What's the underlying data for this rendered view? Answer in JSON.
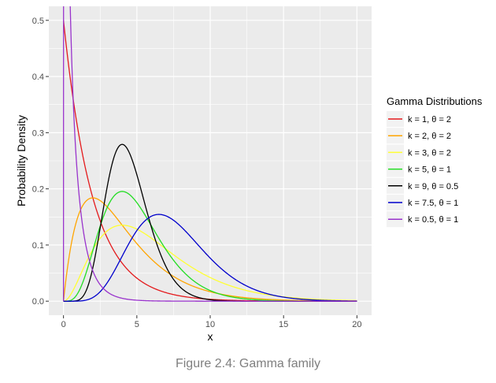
{
  "figure": {
    "caption": "Figure 2.4: Gamma family"
  },
  "chart_data": {
    "type": "line",
    "title": "",
    "xlabel": "x",
    "ylabel": "Probability Density",
    "xlim": [
      0,
      20
    ],
    "ylim": [
      0,
      0.5
    ],
    "x_ticks": [
      0,
      5,
      10,
      15,
      20
    ],
    "y_ticks": [
      0.0,
      0.1,
      0.2,
      0.3,
      0.4,
      0.5
    ],
    "x_tick_labels": [
      "0",
      "5",
      "10",
      "15",
      "20"
    ],
    "y_tick_labels": [
      "0.0",
      "0.1",
      "0.2",
      "0.3",
      "0.4",
      "0.5"
    ],
    "grid": true,
    "panel_background": "#ebebeb",
    "grid_color": "#ffffff",
    "legend": {
      "title": "Gamma Distributions",
      "position": "right"
    },
    "series": [
      {
        "name": "k = 1, θ = 2",
        "k": 1,
        "theta": 2,
        "color": "#e41a1c"
      },
      {
        "name": "k = 2, θ = 2",
        "k": 2,
        "theta": 2,
        "color": "#ffa500"
      },
      {
        "name": "k = 3, θ = 2",
        "k": 3,
        "theta": 2,
        "color": "#ffff33"
      },
      {
        "name": "k = 5, θ = 1",
        "k": 5,
        "theta": 1,
        "color": "#22dd22"
      },
      {
        "name": "k = 9, θ = 0.5",
        "k": 9,
        "theta": 0.5,
        "color": "#000000"
      },
      {
        "name": "k = 7.5, θ = 1",
        "k": 7.5,
        "theta": 1,
        "color": "#0000cc"
      },
      {
        "name": "k = 0.5, θ = 1",
        "k": 0.5,
        "theta": 1,
        "color": "#9933cc"
      }
    ]
  }
}
